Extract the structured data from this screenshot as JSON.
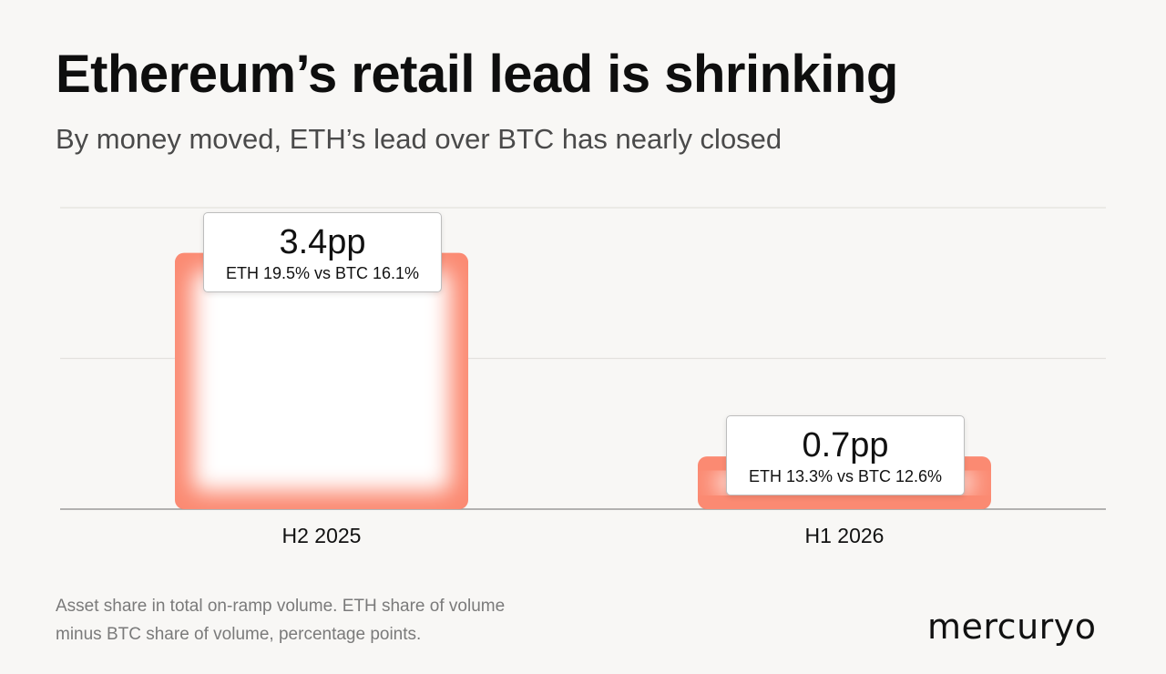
{
  "title": "Ethereum’s retail lead is shrinking",
  "subtitle": "By money moved, ETH’s lead over BTC has nearly closed",
  "chart_data": {
    "type": "bar",
    "categories": [
      "H2 2025",
      "H1 2026"
    ],
    "values": [
      3.4,
      0.7
    ],
    "data_labels": [
      "3.4pp",
      "0.7pp"
    ],
    "sub_labels": [
      "ETH 19.5% vs BTC 16.1%",
      "ETH 13.3% vs BTC 12.6%"
    ],
    "title": "",
    "xlabel": "",
    "ylabel": "",
    "ylim": [
      0,
      4
    ],
    "grid": true,
    "colors": {
      "bar_edge": "#fb8a72",
      "bar_fill": "#ffffff"
    }
  },
  "footnote": {
    "line1": "Asset share in total on-ramp volume. ETH share of volume",
    "line2": "minus BTC share of volume, percentage points."
  },
  "logo": "mercuryo"
}
